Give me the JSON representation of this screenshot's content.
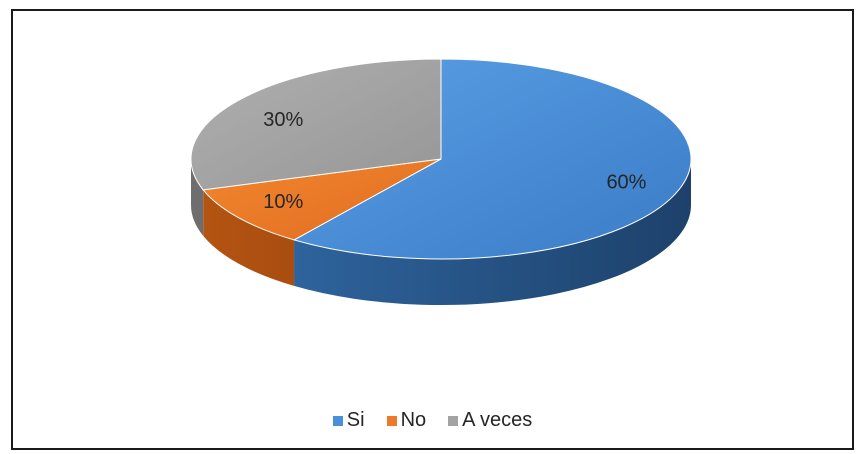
{
  "chart_data": {
    "type": "pie",
    "style": "3d",
    "categories": [
      "Si",
      "No",
      "A veces"
    ],
    "values": [
      60,
      10,
      30
    ],
    "value_labels": [
      "60%",
      "10%",
      "30%"
    ],
    "colors": [
      "#4a8fd8",
      "#ec7a2a",
      "#a3a3a3"
    ],
    "legend_position": "bottom",
    "title": ""
  }
}
